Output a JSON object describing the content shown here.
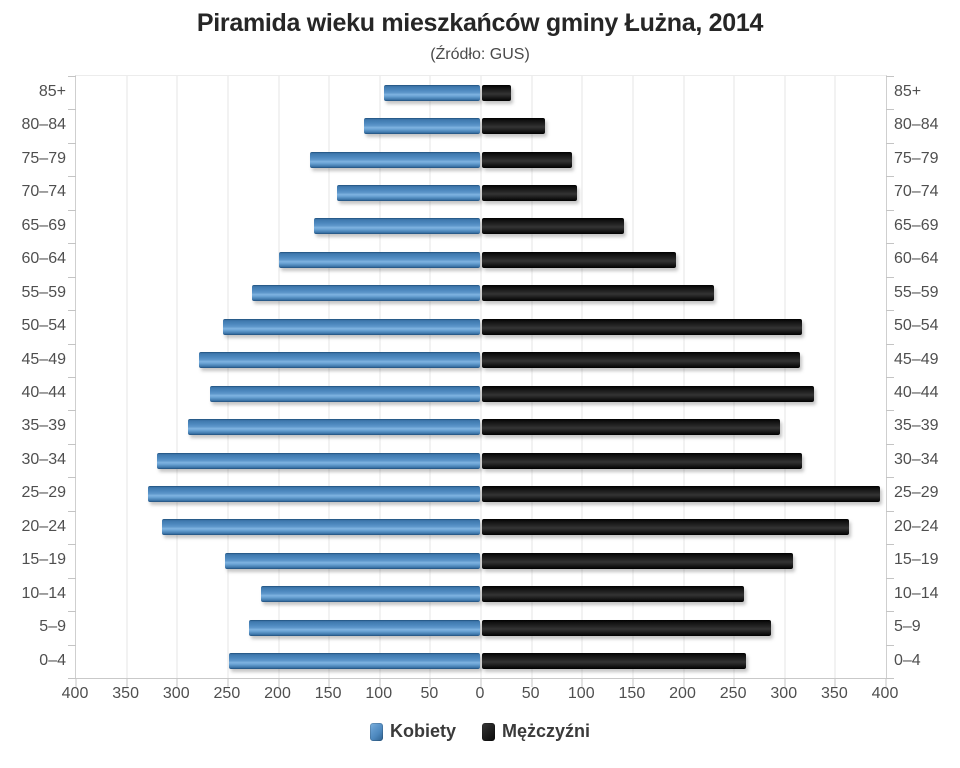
{
  "chart_data": {
    "type": "bar",
    "variant": "population-pyramid",
    "orientation": "horizontal",
    "title": "Piramida wieku mieszkańców gminy Łużna, 2014",
    "subtitle": "(Źródło: GUS)",
    "categories": [
      "85+",
      "80–84",
      "75–79",
      "70–74",
      "65–69",
      "60–64",
      "55–59",
      "50–54",
      "45–49",
      "40–44",
      "35–39",
      "30–34",
      "25–29",
      "20–24",
      "15–19",
      "10–14",
      "5–9",
      "0–4"
    ],
    "categories_order": "top-to-bottom",
    "series": [
      {
        "name": "Kobiety",
        "side": "left",
        "color": "#4d88be",
        "values": [
          95,
          115,
          168,
          141,
          164,
          199,
          225,
          254,
          278,
          267,
          288,
          319,
          328,
          314,
          252,
          216,
          228,
          248
        ]
      },
      {
        "name": "Mężczyźni",
        "side": "right",
        "color": "#161616",
        "values": [
          29,
          62,
          89,
          94,
          140,
          192,
          229,
          316,
          314,
          328,
          294,
          316,
          393,
          362,
          307,
          259,
          285,
          261
        ]
      }
    ],
    "x_axis": {
      "max": 400,
      "tick_step": 50,
      "tick_labels": [
        "400",
        "350",
        "300",
        "250",
        "200",
        "150",
        "100",
        "50",
        "0",
        "50",
        "100",
        "150",
        "200",
        "250",
        "300",
        "350",
        "400"
      ]
    },
    "grid": true,
    "legend_position": "bottom"
  }
}
